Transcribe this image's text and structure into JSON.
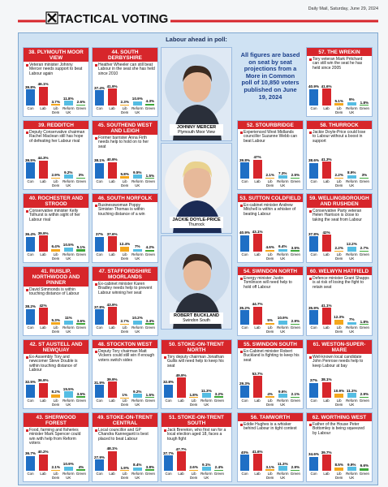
{
  "header": {
    "title": "TACTICAL VOTING",
    "dateline": "Daily Mail, Saturday, June 29, 2024",
    "banner": "Labour ahead in poll:"
  },
  "note": "All figures are based on seat by seat projections from a More in Common poll of 10,850 voters published on June 19, 2024",
  "photos": [
    {
      "name": "JOHNNY MERCER",
      "seat": "Plymouth Moor View"
    },
    {
      "name": "JACKIE DOYLE-PRICE",
      "seat": "Thurrock"
    },
    {
      "name": "ROBERT BUCKLAND",
      "seat": "Swindon South"
    }
  ],
  "chart_data": [
    {
      "type": "bar",
      "title": "38. PLYMOUTH MOOR VIEW",
      "subtitle": "Veteran minister Johnny Mercer needs support to beat Labour again",
      "categories": [
        "Con",
        "Lab",
        "Lib Dem",
        "Reform UK",
        "Green"
      ],
      "colors": [
        "#1f6fc5",
        "#d7262b",
        "#f4a71d",
        "#55bde3",
        "#3ea83a"
      ],
      "values": [
        39.8,
        46.1,
        3.7,
        11.8,
        2.6
      ],
      "value_labels": [
        "39.8%",
        "46.1%",
        "3.7%",
        "11.8%",
        "2.6%"
      ]
    },
    {
      "type": "bar",
      "title": "39. REDDITCH",
      "subtitle": "Deputy Conservative chairman Rachel Maclean still has hope of defeating her Labour rival",
      "categories": [
        "Con",
        "Lab",
        "Lib Dem",
        "Reform UK",
        "Green"
      ],
      "colors": [
        "#1f6fc5",
        "#d7262b",
        "#f4a71d",
        "#55bde3",
        "#3ea83a"
      ],
      "values": [
        39.5,
        44.3,
        2.9,
        9.2,
        3
      ],
      "value_labels": [
        "39.5%",
        "44.3%",
        "2.9%",
        "9.2%",
        "3%"
      ]
    },
    {
      "type": "bar",
      "title": "40. ROCHESTER AND STROOD",
      "subtitle": "Conservative minister Kelly Tolhurst is within sight of her Labour rival",
      "categories": [
        "Con",
        "Lab",
        "Lib Dem",
        "Reform UK",
        "Green"
      ],
      "colors": [
        "#1f6fc5",
        "#d7262b",
        "#f4a71d",
        "#55bde3",
        "#3ea83a"
      ],
      "values": [
        36.4,
        39.9,
        6.4,
        10.5,
        5.1
      ],
      "value_labels": [
        "36.4%",
        "39.9%",
        "6.4%",
        "10.5%",
        "5.1%"
      ]
    },
    {
      "type": "bar",
      "title": "41. RUISLIP, NORTHWOOD AND PINNER",
      "subtitle": "David Simmonds is within touching distance of Labour",
      "categories": [
        "Con",
        "Lab",
        "Lib Dem",
        "Reform UK",
        "Green"
      ],
      "colors": [
        "#1f6fc5",
        "#d7262b",
        "#f4a71d",
        "#55bde3",
        "#3ea83a"
      ],
      "values": [
        38.2,
        42,
        5.3,
        11,
        3.6
      ],
      "value_labels": [
        "38.2%",
        "42%",
        "5.3%",
        "11%",
        "3.6%"
      ]
    },
    {
      "type": "bar",
      "title": "42. ST AUSTELL AND NEWQUAY",
      "subtitle": "Ex-Assembly Tory and newcomer Steve Double is within touching distance of Labour",
      "categories": [
        "Con",
        "Lab",
        "Lib Dem",
        "Reform UK",
        "Green"
      ],
      "colors": [
        "#1f6fc5",
        "#d7262b",
        "#f4a71d",
        "#55bde3",
        "#3ea83a"
      ],
      "values": [
        32.5,
        36.9,
        8.2,
        15.5,
        3.5
      ],
      "value_labels": [
        "32.5%",
        "36.9%",
        "8.2%",
        "15.5%",
        "3.5%"
      ]
    },
    {
      "type": "bar",
      "title": "43. SHERWOOD FOREST",
      "subtitle": "Food, farming and fisheries minister Mark Spencer could win with help from Reform voters",
      "categories": [
        "Con",
        "Lab",
        "Lib Dem",
        "Reform UK",
        "Green"
      ],
      "colors": [
        "#1f6fc5",
        "#d7262b",
        "#f4a71d",
        "#55bde3",
        "#3ea83a"
      ],
      "values": [
        36.7,
        40.2,
        2.1,
        10.9,
        4
      ],
      "value_labels": [
        "36.7%",
        "40.2%",
        "2.1%",
        "10.9%",
        "4%"
      ]
    },
    {
      "type": "bar",
      "title": "44. SOUTH DERBYSHIRE",
      "subtitle": "Heather Wheeler can still beat Labour in the seat she has held since 2010",
      "categories": [
        "Con",
        "Lab",
        "Lib Dem",
        "Reform UK",
        "Green"
      ],
      "colors": [
        "#1f6fc5",
        "#d7262b",
        "#f4a71d",
        "#55bde3",
        "#3ea83a"
      ],
      "values": [
        37.4,
        41.9,
        2.3,
        10.9,
        4.3
      ],
      "value_labels": [
        "37.4%",
        "41.9%",
        "2.3%",
        "10.9%",
        "4.3%"
      ]
    },
    {
      "type": "bar",
      "title": "45. SOUTHEND WEST AND LEIGH",
      "subtitle": "Former barrister Anna Firth needs help to hold on to her seat",
      "categories": [
        "Con",
        "Lab",
        "Lib Dem",
        "Reform UK",
        "Green"
      ],
      "colors": [
        "#1f6fc5",
        "#d7262b",
        "#f4a71d",
        "#55bde3",
        "#3ea83a"
      ],
      "values": [
        38.1,
        40.9,
        5.8,
        9.5,
        1.5
      ],
      "value_labels": [
        "38.1%",
        "40.9%",
        "5.8%",
        "9.5%",
        "1.5%"
      ]
    },
    {
      "type": "bar",
      "title": "46. SOUTH NORFOLK",
      "subtitle": "Businesswoman Poppy Simister-Thomas is within touching distance of a win",
      "categories": [
        "Con",
        "Lab",
        "Lib Dem",
        "Reform UK",
        "Green"
      ],
      "colors": [
        "#1f6fc5",
        "#d7262b",
        "#f4a71d",
        "#55bde3",
        "#3ea83a"
      ],
      "values": [
        37,
        37.6,
        12.4,
        7,
        4.2
      ],
      "value_labels": [
        "37%",
        "37.6%",
        "12.4%",
        "7%",
        "4.2%"
      ]
    },
    {
      "type": "bar",
      "title": "47. STAFFORDSHIRE MOORLANDS",
      "subtitle": "Ex-cabinet minister Karen Bradley needs help to prevent Labour winning her seat",
      "categories": [
        "Con",
        "Lab",
        "Lib Dem",
        "Reform UK",
        "Green"
      ],
      "colors": [
        "#1f6fc5",
        "#d7262b",
        "#f4a71d",
        "#55bde3",
        "#3ea83a"
      ],
      "values": [
        37.8,
        43.9,
        2.7,
        10.2,
        3.4
      ],
      "value_labels": [
        "37.8%",
        "43.9%",
        "2.7%",
        "10.2%",
        "3.4%"
      ]
    },
    {
      "type": "bar",
      "title": "48. STOCKTON WEST",
      "subtitle": "Deputy Tory chairman Matt Vickers could still win if enough voters switch sides",
      "categories": [
        "Con",
        "Lab",
        "Lib Dem",
        "Reform UK",
        "Green"
      ],
      "colors": [
        "#1f6fc5",
        "#d7262b",
        "#f4a71d",
        "#55bde3",
        "#3ea83a"
      ],
      "values": [
        31.9,
        39.9,
        1,
        9.2,
        1.5
      ],
      "value_labels": [
        "31.9%",
        "39.9%",
        "1%",
        "9.2%",
        "1.5%"
      ]
    },
    {
      "type": "bar",
      "title": "49. STOKE-ON-TRENT CENTRAL",
      "subtitle": "Local councillor and GP Chandra Kanneganti is best placed to beat Labour",
      "categories": [
        "Con",
        "Lab",
        "Lib Dem",
        "Reform UK",
        "Green"
      ],
      "colors": [
        "#1f6fc5",
        "#d7262b",
        "#f4a71d",
        "#55bde3",
        "#3ea83a"
      ],
      "values": [
        27.9,
        48.1,
        1.9,
        8.4,
        3.8
      ],
      "value_labels": [
        "27.9%",
        "48.1%",
        "1.9%",
        "8.4%",
        "3.8%"
      ]
    },
    {
      "type": "bar",
      "title": "50. STOKE-ON-TRENT NORTH",
      "subtitle": "Tory deputy chairman Jonathan Gullis will need help to keep his seat",
      "categories": [
        "Con",
        "Lab",
        "Lib Dem",
        "Reform UK",
        "Green"
      ],
      "colors": [
        "#1f6fc5",
        "#d7262b",
        "#f4a71d",
        "#55bde3",
        "#3ea83a"
      ],
      "values": [
        32.8,
        49.9,
        1.8,
        11.3,
        3.2
      ],
      "value_labels": [
        "32.8%",
        "49.9%",
        "1.8%",
        "11.3%",
        "3.2%"
      ]
    },
    {
      "type": "bar",
      "title": "51. STOKE-ON-TRENT SOUTH",
      "subtitle": "Jack Brereton, who first ran for a local election aged 18, faces a tough fight",
      "categories": [
        "Con",
        "Lab",
        "Lib Dem",
        "Reform UK",
        "Green"
      ],
      "colors": [
        "#1f6fc5",
        "#d7262b",
        "#f4a71d",
        "#55bde3",
        "#3ea83a"
      ],
      "values": [
        37.7,
        47.7,
        2.6,
        9.1,
        2.4
      ],
      "value_labels": [
        "37.7%",
        "47.7%",
        "2.6%",
        "9.1%",
        "2.4%"
      ]
    },
    {
      "type": "bar",
      "title": "52. STOURBRIDGE",
      "subtitle": "Experienced West Midlands councillor Suzanne Webb can beat Labour",
      "categories": [
        "Con",
        "Lab",
        "Lib Dem",
        "Reform UK",
        "Green"
      ],
      "colors": [
        "#1f6fc5",
        "#d7262b",
        "#f4a71d",
        "#55bde3",
        "#3ea83a"
      ],
      "values": [
        39.8,
        47,
        2.1,
        7.3,
        2.5
      ],
      "value_labels": [
        "39.8%",
        "47%",
        "2.1%",
        "7.3%",
        "2.5%"
      ]
    },
    {
      "type": "bar",
      "title": "53. SUTTON COLDFIELD",
      "subtitle": "Ex-cabinet minister Andrew Mitchell is within a whisker of beating Labour",
      "categories": [
        "Con",
        "Lab",
        "Lib Dem",
        "Reform UK",
        "Green"
      ],
      "colors": [
        "#1f6fc5",
        "#d7262b",
        "#f4a71d",
        "#55bde3",
        "#3ea83a"
      ],
      "values": [
        40.9,
        43.1,
        4.6,
        6.4,
        3.5
      ],
      "value_labels": [
        "40.9%",
        "43.1%",
        "4.6%",
        "6.4%",
        "3.5%"
      ]
    },
    {
      "type": "bar",
      "title": "54. SWINDON NORTH",
      "subtitle": "Energy minister Justin Tomlinson will need help to hold off Labour",
      "categories": [
        "Con",
        "Lab",
        "Lib Dem",
        "Reform UK",
        "Green"
      ],
      "colors": [
        "#1f6fc5",
        "#d7262b",
        "#f4a71d",
        "#55bde3",
        "#3ea83a"
      ],
      "values": [
        35.2,
        44.7,
        5,
        10.9,
        2.9
      ],
      "value_labels": [
        "35.2%",
        "44.7%",
        "5%",
        "10.9%",
        "2.9%"
      ]
    },
    {
      "type": "bar",
      "title": "55. SWINDON SOUTH",
      "subtitle": "Ex-Cabinet minister Robert Buckland is fighting to keep his seat",
      "categories": [
        "Con",
        "Lab",
        "Lib Dem",
        "Reform UK",
        "Green"
      ],
      "colors": [
        "#1f6fc5",
        "#d7262b",
        "#f4a71d",
        "#55bde3",
        "#3ea83a"
      ],
      "values": [
        29.3,
        53.7,
        4,
        9.6,
        2.1
      ],
      "value_labels": [
        "29.3%",
        "53.7%",
        "4%",
        "9.6%",
        "2.1%"
      ]
    },
    {
      "type": "bar",
      "title": "56. TAMWORTH",
      "subtitle": "Eddie Hughes is a whisker behind Labour in tight contest",
      "categories": [
        "Con",
        "Lab",
        "Lib Dem",
        "Reform UK",
        "Green"
      ],
      "colors": [
        "#1f6fc5",
        "#d7262b",
        "#f4a71d",
        "#55bde3",
        "#3ea83a"
      ],
      "values": [
        40,
        41.6,
        3.1,
        11.3,
        2.9
      ],
      "value_labels": [
        "40%",
        "41.6%",
        "3.1%",
        "11.3%",
        "2.9%"
      ]
    },
    {
      "type": "bar",
      "title": "57. THE WREKIN",
      "subtitle": "Tory veteran Mark Pritchard can still win the seat he has held since 2005",
      "categories": [
        "Con",
        "Lab",
        "Lib Dem",
        "Reform UK",
        "Green"
      ],
      "colors": [
        "#1f6fc5",
        "#d7262b",
        "#f4a71d",
        "#55bde3",
        "#3ea83a"
      ],
      "values": [
        40.9,
        41.6,
        5.1,
        9,
        1.8
      ],
      "value_labels": [
        "40.9%",
        "41.6%",
        "5.1%",
        "9%",
        "1.8%"
      ]
    },
    {
      "type": "bar",
      "title": "58. THURROCK",
      "subtitle": "Jackie Doyle-Price could lose to Labour without a boost in support",
      "categories": [
        "Con",
        "Lab",
        "Lib Dem",
        "Reform UK",
        "Green"
      ],
      "colors": [
        "#1f6fc5",
        "#d7262b",
        "#f4a71d",
        "#55bde3",
        "#3ea83a"
      ],
      "values": [
        38.6,
        41.3,
        2.2,
        8.9,
        3
      ],
      "value_labels": [
        "38.6%",
        "41.3%",
        "2.2%",
        "8.9%",
        "3%"
      ]
    },
    {
      "type": "bar",
      "title": "59. WELLINGBOROUGH AND RUSHDEN",
      "subtitle": "Conservative Party veteran Helen Harrison is close to taking the seat from Labour",
      "categories": [
        "Con",
        "Lab",
        "Lib Dem",
        "Reform UK",
        "Green"
      ],
      "colors": [
        "#1f6fc5",
        "#d7262b",
        "#f4a71d",
        "#55bde3",
        "#3ea83a"
      ],
      "values": [
        37.8,
        42,
        2.2,
        12.2,
        2.7
      ],
      "value_labels": [
        "37.8%",
        "42%",
        "2.2%",
        "12.2%",
        "2.7%"
      ]
    },
    {
      "type": "bar",
      "title": "60. WELWYN HATFIELD",
      "subtitle": "Defence minister Grant Shapps is at risk of losing the fight to retain seat",
      "categories": [
        "Con",
        "Lab",
        "Lib Dem",
        "Reform UK",
        "Green"
      ],
      "colors": [
        "#1f6fc5",
        "#d7262b",
        "#f4a71d",
        "#55bde3",
        "#3ea83a"
      ],
      "values": [
        35.9,
        41.1,
        12.3,
        7,
        1.8
      ],
      "value_labels": [
        "35.9%",
        "41.1%",
        "12.3%",
        "7%",
        "1.8%"
      ]
    },
    {
      "type": "bar",
      "title": "61. WESTON-SUPER-MARE",
      "subtitle": "Well-known local candidate John Penrose needs help to keep Labour at bay",
      "categories": [
        "Con",
        "Lab",
        "Lib Dem",
        "Reform UK",
        "Green"
      ],
      "colors": [
        "#1f6fc5",
        "#d7262b",
        "#f4a71d",
        "#55bde3",
        "#3ea83a"
      ],
      "values": [
        37,
        38.1,
        10.9,
        11.3,
        2.9
      ],
      "value_labels": [
        "37%",
        "38.1%",
        "10.9%",
        "11.3%",
        "2.9%"
      ]
    },
    {
      "type": "bar",
      "title": "62. WORTHING WEST",
      "subtitle": "Father of the House Peter Bottomley is being squeezed by Labour",
      "categories": [
        "Con",
        "Lab",
        "Lib Dem",
        "Reform UK",
        "Green"
      ],
      "colors": [
        "#1f6fc5",
        "#d7262b",
        "#f4a71d",
        "#55bde3",
        "#3ea83a"
      ],
      "values": [
        34.6,
        39.7,
        8.5,
        9.9,
        6.6
      ],
      "value_labels": [
        "34.6%",
        "39.7%",
        "8.5%",
        "9.9%",
        "6.6%"
      ]
    }
  ]
}
